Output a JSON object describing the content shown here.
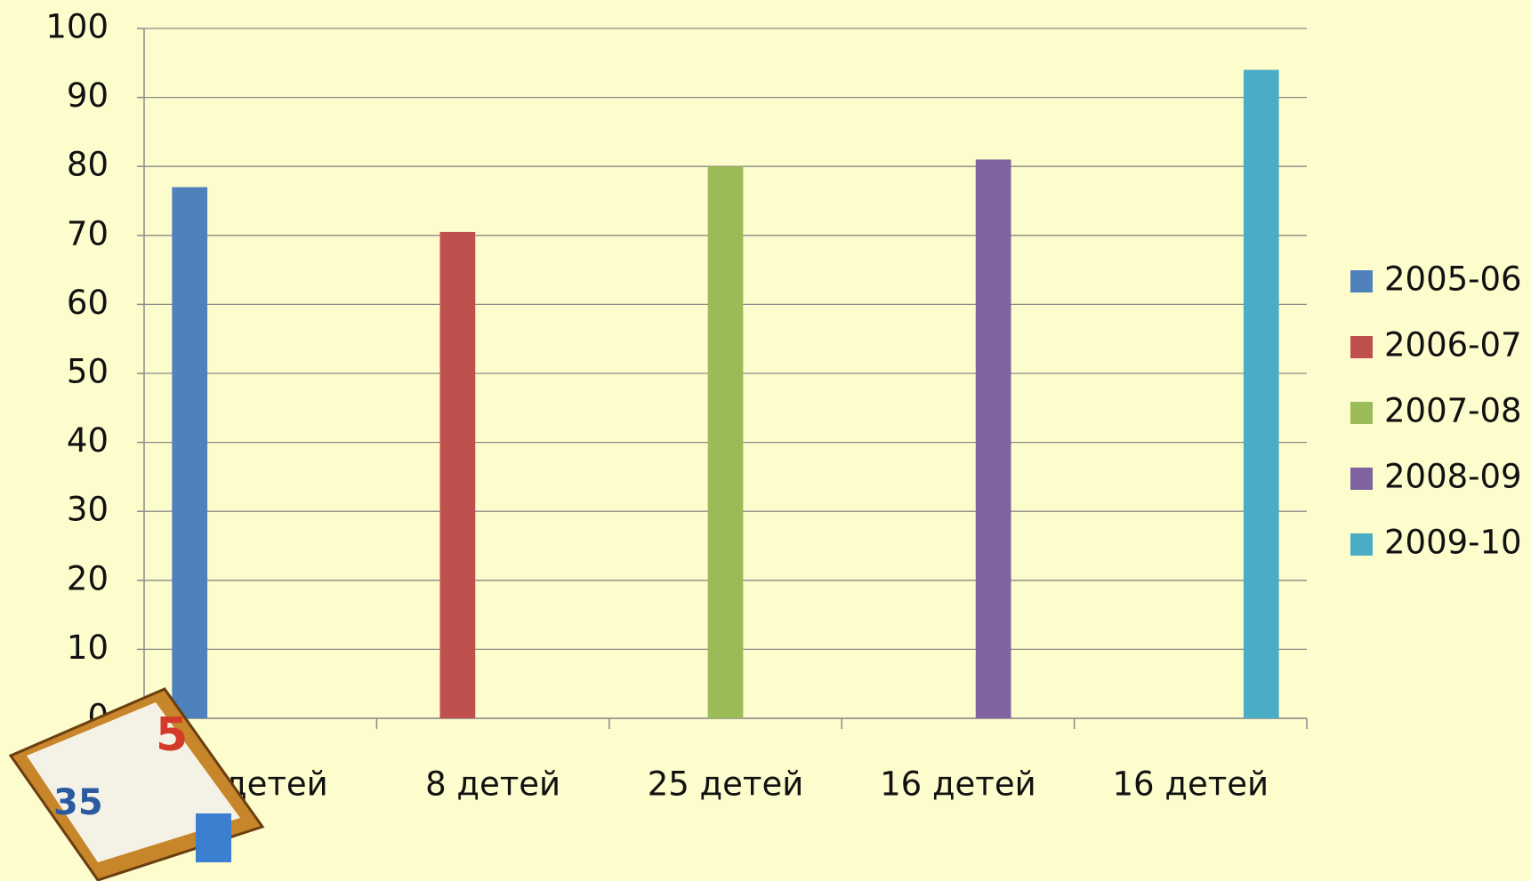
{
  "chart_data": {
    "type": "bar",
    "categories": [
      "6 детей",
      "8 детей",
      "25 детей",
      "16 детей",
      "16 детей"
    ],
    "series": [
      {
        "name": "2005-06",
        "color": "#4f81bd",
        "values": [
          77,
          null,
          null,
          null,
          null
        ]
      },
      {
        "name": "2006-07",
        "color": "#c0504d",
        "values": [
          null,
          70.5,
          null,
          null,
          null
        ]
      },
      {
        "name": "2007-08",
        "color": "#9bbb59",
        "values": [
          null,
          null,
          80,
          null,
          null
        ]
      },
      {
        "name": "2008-09",
        "color": "#8064a2",
        "values": [
          null,
          null,
          null,
          81,
          null
        ]
      },
      {
        "name": "2009-10",
        "color": "#4bacc6",
        "values": [
          null,
          null,
          null,
          null,
          94
        ]
      }
    ],
    "ylim": [
      0,
      100
    ],
    "yticks": [
      0,
      10,
      20,
      30,
      40,
      50,
      60,
      70,
      80,
      90,
      100
    ],
    "grid": true,
    "legend": "right"
  }
}
